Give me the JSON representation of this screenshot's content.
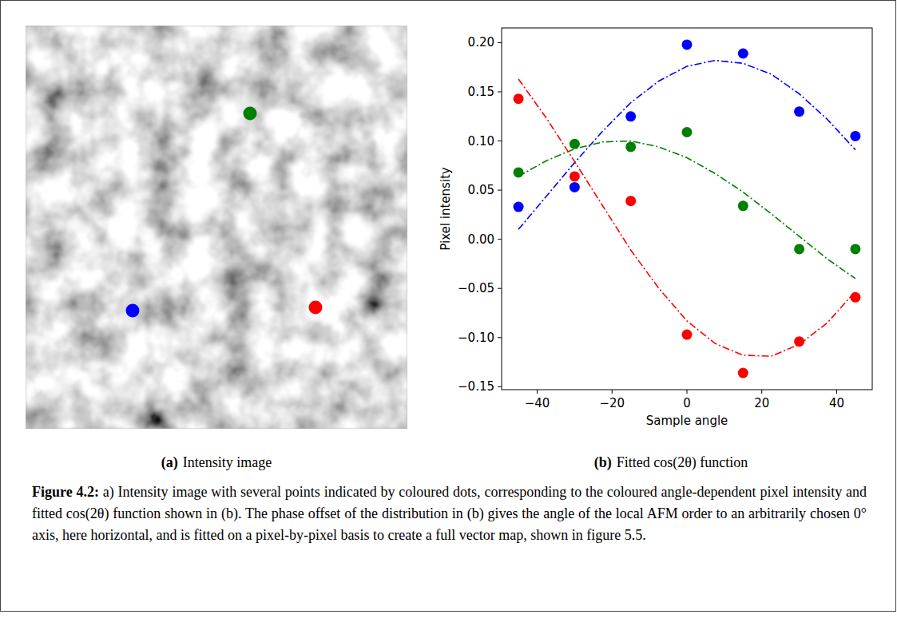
{
  "figure": {
    "panels": [
      {
        "label": "(a)",
        "caption": "Intensity image"
      },
      {
        "label": "(b)",
        "caption": "Fitted cos(2θ) function"
      }
    ],
    "caption": {
      "label": "Figure 4.2:",
      "text": "a) Intensity image with several points indicated by coloured dots, corresponding to the coloured angle-dependent pixel intensity and fitted cos(2θ) function shown in (b). The phase offset of the distribution in (b) gives the angle of the local AFM order to an arbitrarily chosen 0° axis, here horizontal, and is fitted on a pixel-by-pixel basis to create a full vector map, shown in figure 5.5."
    }
  },
  "chart_data": {
    "type": "scatter",
    "x_label": "Sample angle",
    "y_label": "Pixel intensity",
    "xlim": [
      -49.5,
      49.5
    ],
    "ylim": [
      -0.153,
      0.215
    ],
    "xticks": [
      {
        "value": -40,
        "label": "−40"
      },
      {
        "value": -20,
        "label": "−20"
      },
      0,
      20,
      40
    ],
    "yticks": [
      {
        "value": -0.15,
        "label": "−0.15"
      },
      {
        "value": -0.1,
        "label": "−0.10"
      },
      {
        "value": -0.05,
        "label": "−0.05"
      },
      {
        "value": 0,
        "label": "0.00"
      },
      {
        "value": 0.05,
        "label": "0.05"
      },
      {
        "value": 0.1,
        "label": "0.10"
      },
      {
        "value": 0.15,
        "label": "0.15"
      },
      {
        "value": 0.2,
        "label": "0.20"
      }
    ],
    "grid": false,
    "series": [
      {
        "type": "scatter",
        "marker": "o",
        "color": "#0000ff",
        "x": [
          -45,
          -30,
          -15,
          0,
          15,
          30,
          45
        ],
        "values": [
          0.033,
          0.053,
          0.125,
          0.198,
          0.189,
          0.13,
          0.105
        ]
      },
      {
        "type": "scatter",
        "marker": "o",
        "color": "#008000",
        "x": [
          -45,
          -30,
          -15,
          0,
          15,
          30,
          45
        ],
        "values": [
          0.068,
          0.097,
          0.094,
          0.109,
          0.034,
          -0.01,
          -0.01
        ]
      },
      {
        "type": "scatter",
        "marker": "o",
        "color": "#ff0000",
        "x": [
          -45,
          -30,
          -15,
          0,
          15,
          30,
          45
        ],
        "values": [
          0.143,
          0.064,
          0.039,
          -0.097,
          -0.136,
          -0.104,
          -0.059
        ]
      },
      {
        "type": "line",
        "line_style": "dashdot",
        "color": "#0000ff",
        "x": [
          -45,
          -37.5,
          -30,
          -22.5,
          -15,
          -7.5,
          0,
          7.5,
          15,
          22.5,
          30,
          37.5,
          45
        ],
        "values": [
          0.01,
          0.044,
          0.078,
          0.11,
          0.139,
          0.161,
          0.176,
          0.182,
          0.179,
          0.168,
          0.148,
          0.122,
          0.091
        ]
      },
      {
        "type": "line",
        "line_style": "dashdot",
        "color": "#008000",
        "x": [
          -45,
          -37.5,
          -30,
          -22.5,
          -15,
          -7.5,
          0,
          7.5,
          15,
          22.5,
          30,
          37.5,
          45
        ],
        "values": [
          0.064,
          0.08,
          0.092,
          0.099,
          0.1,
          0.094,
          0.083,
          0.067,
          0.048,
          0.026,
          0.003,
          -0.02,
          -0.04
        ]
      },
      {
        "type": "line",
        "line_style": "dashdot",
        "color": "#ff0000",
        "x": [
          -45,
          -37.5,
          -30,
          -22.5,
          -15,
          -7.5,
          0,
          7.5,
          15,
          22.5,
          30,
          37.5,
          45
        ],
        "values": [
          0.163,
          0.123,
          0.079,
          0.034,
          -0.011,
          -0.05,
          -0.083,
          -0.106,
          -0.118,
          -0.119,
          -0.107,
          -0.085,
          -0.053
        ]
      }
    ]
  }
}
